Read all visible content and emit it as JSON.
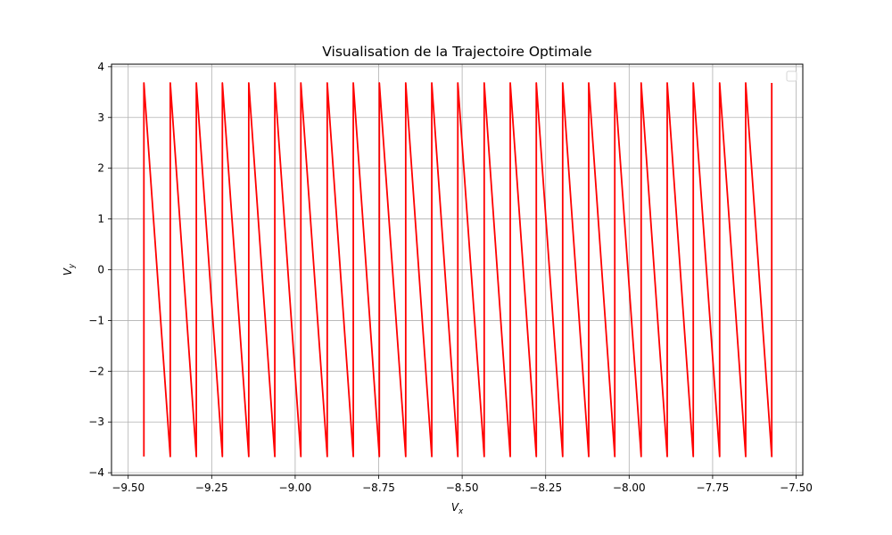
{
  "chart_data": {
    "type": "line",
    "title": "Visualisation de la Trajectoire Optimale",
    "xlabel": "V",
    "xlabel_sub": "x",
    "ylabel": "V",
    "ylabel_sub": "y",
    "xlim": [
      -9.55,
      -7.48
    ],
    "ylim": [
      -4.05,
      4.05
    ],
    "xticks": [
      -9.5,
      -9.25,
      -9.0,
      -8.75,
      -8.5,
      -8.25,
      -8.0,
      -7.75,
      -7.5
    ],
    "xtick_labels": [
      "−9.50",
      "−9.25",
      "−9.00",
      "−8.75",
      "−8.50",
      "−8.25",
      "−8.00",
      "−7.75",
      "−7.50"
    ],
    "yticks": [
      -4,
      -3,
      -2,
      -1,
      0,
      1,
      2,
      3,
      4
    ],
    "ytick_labels": [
      "−4",
      "−3",
      "−2",
      "−1",
      "0",
      "1",
      "2",
      "3",
      "4"
    ],
    "grid": true,
    "legend": "upper-right (empty)",
    "series": [
      {
        "color": "#ff0000",
        "peak_x": [
          -9.453,
          -9.374,
          -9.296,
          -9.218,
          -9.139,
          -9.061,
          -8.983,
          -8.904,
          -8.826,
          -8.748,
          -8.669,
          -8.591,
          -8.513,
          -8.434,
          -8.356,
          -8.278,
          -8.199,
          -8.121,
          -8.043,
          -7.964,
          -7.886,
          -7.808,
          -7.729,
          -7.651,
          -7.573
        ],
        "y_max": 3.68,
        "y_min": -3.68
      }
    ]
  }
}
